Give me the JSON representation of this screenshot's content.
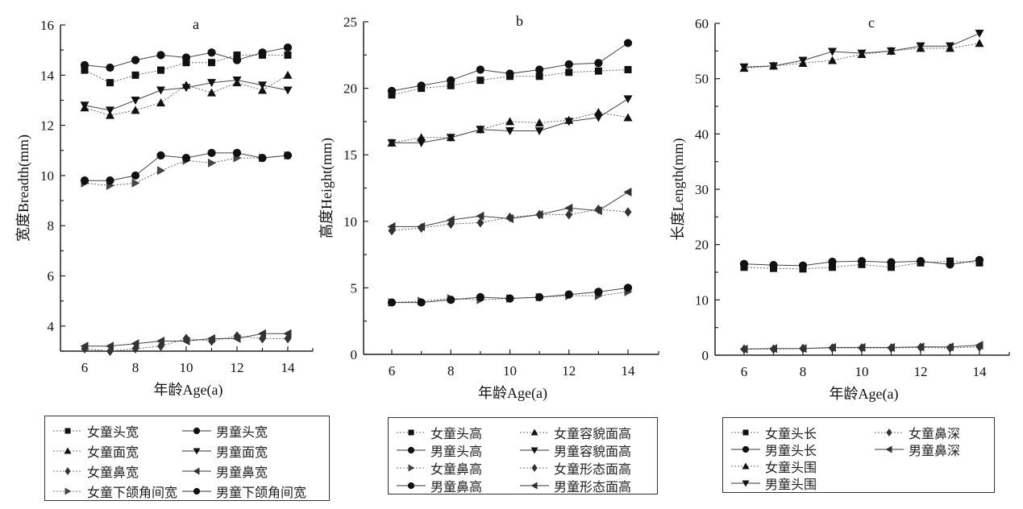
{
  "chart_data": [
    {
      "id": "a",
      "type": "line",
      "title": "a",
      "xlabel": "年龄Age(a)",
      "ylabel": "宽度Breadth(mm)",
      "xlim": [
        5,
        15
      ],
      "ylim": [
        3,
        16
      ],
      "xticks": [
        6,
        8,
        10,
        12,
        14
      ],
      "yticks": [
        4,
        6,
        8,
        10,
        12,
        14,
        16
      ],
      "grid": false,
      "legend_position": "bottom",
      "x": [
        6,
        7,
        8,
        9,
        10,
        11,
        12,
        13,
        14
      ],
      "series": [
        {
          "name": "女童头宽",
          "marker": "square",
          "line": "dotted",
          "color": "#111111",
          "values": [
            14.2,
            13.7,
            14.0,
            14.2,
            14.5,
            14.5,
            14.8,
            14.8,
            14.8
          ]
        },
        {
          "name": "男童头宽",
          "marker": "circle",
          "line": "solid",
          "color": "#111111",
          "values": [
            14.4,
            14.3,
            14.6,
            14.8,
            14.7,
            14.9,
            14.6,
            14.9,
            15.1
          ]
        },
        {
          "name": "女童面宽",
          "marker": "triangle-up",
          "line": "dotted",
          "color": "#111111",
          "values": [
            12.7,
            12.4,
            12.6,
            12.9,
            13.6,
            13.3,
            13.7,
            13.4,
            14.0
          ]
        },
        {
          "name": "男童面宽",
          "marker": "triangle-down",
          "line": "solid",
          "color": "#111111",
          "values": [
            12.8,
            12.6,
            13.0,
            13.4,
            13.5,
            13.7,
            13.8,
            13.6,
            13.4
          ]
        },
        {
          "name": "女童鼻宽",
          "marker": "diamond",
          "line": "dotted",
          "color": "#333333",
          "values": [
            3.1,
            3.0,
            3.1,
            3.2,
            3.5,
            3.4,
            3.6,
            3.5,
            3.5
          ]
        },
        {
          "name": "男童鼻宽",
          "marker": "triangle-left",
          "line": "solid",
          "color": "#333333",
          "values": [
            3.2,
            3.2,
            3.3,
            3.4,
            3.4,
            3.5,
            3.5,
            3.7,
            3.7
          ]
        },
        {
          "name": "女童下颌角间宽",
          "marker": "triangle-right",
          "line": "dotted",
          "color": "#444444",
          "values": [
            9.7,
            9.6,
            9.7,
            10.2,
            10.6,
            10.5,
            10.7,
            10.7,
            10.8
          ]
        },
        {
          "name": "男童下颌角间宽",
          "marker": "circle",
          "line": "solid",
          "color": "#111111",
          "values": [
            9.8,
            9.8,
            10.0,
            10.8,
            10.7,
            10.9,
            10.9,
            10.7,
            10.8
          ]
        }
      ],
      "legend_layout": [
        [
          0,
          1
        ],
        [
          2,
          3
        ],
        [
          4,
          5
        ],
        [
          6,
          7
        ]
      ]
    },
    {
      "id": "b",
      "type": "line",
      "title": "b",
      "xlabel": "年龄Age(a)",
      "ylabel": "高度Height(mm)",
      "xlim": [
        5,
        15
      ],
      "ylim": [
        0,
        25
      ],
      "xticks": [
        6,
        8,
        10,
        12,
        14
      ],
      "yticks": [
        0,
        5,
        10,
        15,
        20,
        25
      ],
      "grid": false,
      "legend_position": "bottom",
      "x": [
        6,
        7,
        8,
        9,
        10,
        11,
        12,
        13,
        14
      ],
      "series": [
        {
          "name": "女童头高",
          "marker": "square",
          "line": "dotted",
          "color": "#111111",
          "values": [
            19.5,
            20.0,
            20.2,
            20.6,
            20.9,
            20.9,
            21.2,
            21.3,
            21.4
          ]
        },
        {
          "name": "男童头高",
          "marker": "circle",
          "line": "solid",
          "color": "#111111",
          "values": [
            19.8,
            20.2,
            20.6,
            21.4,
            21.1,
            21.4,
            21.8,
            21.9,
            23.4
          ]
        },
        {
          "name": "女童鼻高",
          "marker": "triangle-right",
          "line": "dotted",
          "color": "#444444",
          "values": [
            3.9,
            4.0,
            4.2,
            4.1,
            4.2,
            4.3,
            4.4,
            4.4,
            4.7
          ]
        },
        {
          "name": "男童鼻高",
          "marker": "circle",
          "line": "solid",
          "color": "#111111",
          "values": [
            3.9,
            3.9,
            4.1,
            4.3,
            4.2,
            4.3,
            4.5,
            4.7,
            5.0
          ]
        },
        {
          "name": "女童容貌面高",
          "marker": "triangle-up",
          "line": "dotted",
          "color": "#111111",
          "values": [
            15.9,
            16.3,
            16.3,
            16.9,
            17.5,
            17.4,
            17.6,
            18.2,
            17.8
          ]
        },
        {
          "name": "男童容貌面高",
          "marker": "triangle-down",
          "line": "solid",
          "color": "#111111",
          "values": [
            15.9,
            15.9,
            16.3,
            16.9,
            16.8,
            16.8,
            17.5,
            17.8,
            19.2
          ]
        },
        {
          "name": "女童形态面高",
          "marker": "diamond",
          "line": "dotted",
          "color": "#333333",
          "values": [
            9.3,
            9.5,
            9.8,
            9.9,
            10.3,
            10.5,
            10.5,
            10.9,
            10.7
          ]
        },
        {
          "name": "男童形态面高",
          "marker": "triangle-left",
          "line": "solid",
          "color": "#333333",
          "values": [
            9.6,
            9.6,
            10.1,
            10.4,
            10.2,
            10.5,
            11.0,
            10.8,
            12.2
          ]
        }
      ],
      "legend_layout": [
        [
          0,
          4
        ],
        [
          1,
          5
        ],
        [
          2,
          6
        ],
        [
          3,
          7
        ]
      ]
    },
    {
      "id": "c",
      "type": "line",
      "title": "c",
      "xlabel": "年龄Age(a)",
      "ylabel": "长度Length(mm)",
      "xlim": [
        5,
        15
      ],
      "ylim": [
        0,
        60
      ],
      "xticks": [
        6,
        8,
        10,
        12,
        14
      ],
      "yticks": [
        0,
        10,
        20,
        30,
        40,
        50,
        60
      ],
      "grid": false,
      "legend_position": "bottom",
      "x": [
        6,
        7,
        8,
        9,
        10,
        11,
        12,
        13,
        14
      ],
      "series": [
        {
          "name": "女童头长",
          "marker": "square",
          "line": "dotted",
          "color": "#111111",
          "values": [
            15.9,
            15.7,
            15.6,
            15.9,
            16.4,
            15.9,
            16.7,
            17.0,
            16.7
          ]
        },
        {
          "name": "男童头长",
          "marker": "circle",
          "line": "solid",
          "color": "#111111",
          "values": [
            16.5,
            16.3,
            16.2,
            16.9,
            17.0,
            16.8,
            17.0,
            16.4,
            17.2
          ]
        },
        {
          "name": "女童头围",
          "marker": "triangle-up",
          "line": "dotted",
          "color": "#111111",
          "values": [
            51.9,
            52.3,
            52.8,
            53.3,
            54.4,
            55.0,
            55.5,
            55.5,
            56.4
          ]
        },
        {
          "name": "男童头围",
          "marker": "triangle-down",
          "line": "solid",
          "color": "#111111",
          "values": [
            52.1,
            52.3,
            53.3,
            54.9,
            54.6,
            55.0,
            55.9,
            55.9,
            58.2
          ]
        },
        {
          "name": "女童鼻深",
          "marker": "diamond",
          "line": "dotted",
          "color": "#333333",
          "values": [
            1.1,
            1.1,
            1.2,
            1.3,
            1.3,
            1.3,
            1.4,
            1.3,
            1.5
          ]
        },
        {
          "name": "男童鼻深",
          "marker": "triangle-left",
          "line": "solid",
          "color": "#333333",
          "values": [
            1.1,
            1.2,
            1.2,
            1.4,
            1.4,
            1.4,
            1.5,
            1.5,
            1.8
          ]
        }
      ],
      "legend_layout": [
        [
          0,
          4
        ],
        [
          1,
          5
        ],
        [
          2,
          null
        ],
        [
          3,
          null
        ]
      ]
    }
  ]
}
